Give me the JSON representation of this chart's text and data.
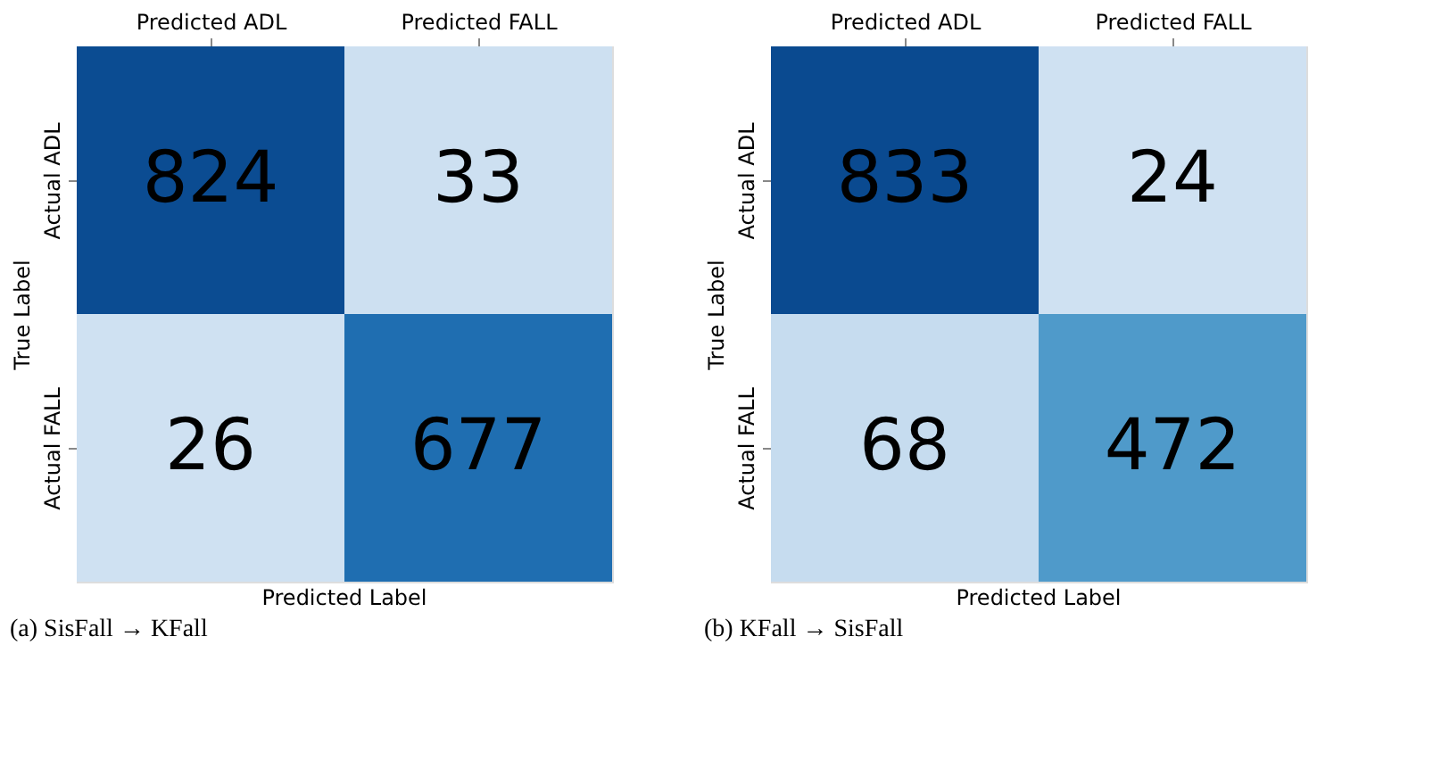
{
  "chart_data": [
    {
      "type": "heatmap",
      "title": "(a) SisFall → KFall",
      "xlabel": "Predicted Label",
      "ylabel": "True Label",
      "categories": [
        "Predicted ADL",
        "Predicted FALL"
      ],
      "y_categories": [
        "Actual ADL",
        "Actual FALL"
      ],
      "cells": [
        [
          824,
          33
        ],
        [
          26,
          677
        ]
      ],
      "data_labels": true
    },
    {
      "type": "heatmap",
      "title": "(b) KFall → SisFall",
      "xlabel": "Predicted Label",
      "ylabel": "True Label",
      "categories": [
        "Predicted ADL",
        "Predicted FALL"
      ],
      "y_categories": [
        "Actual ADL",
        "Actual FALL"
      ],
      "cells": [
        [
          833,
          24
        ],
        [
          68,
          472
        ]
      ],
      "data_labels": true
    }
  ]
}
